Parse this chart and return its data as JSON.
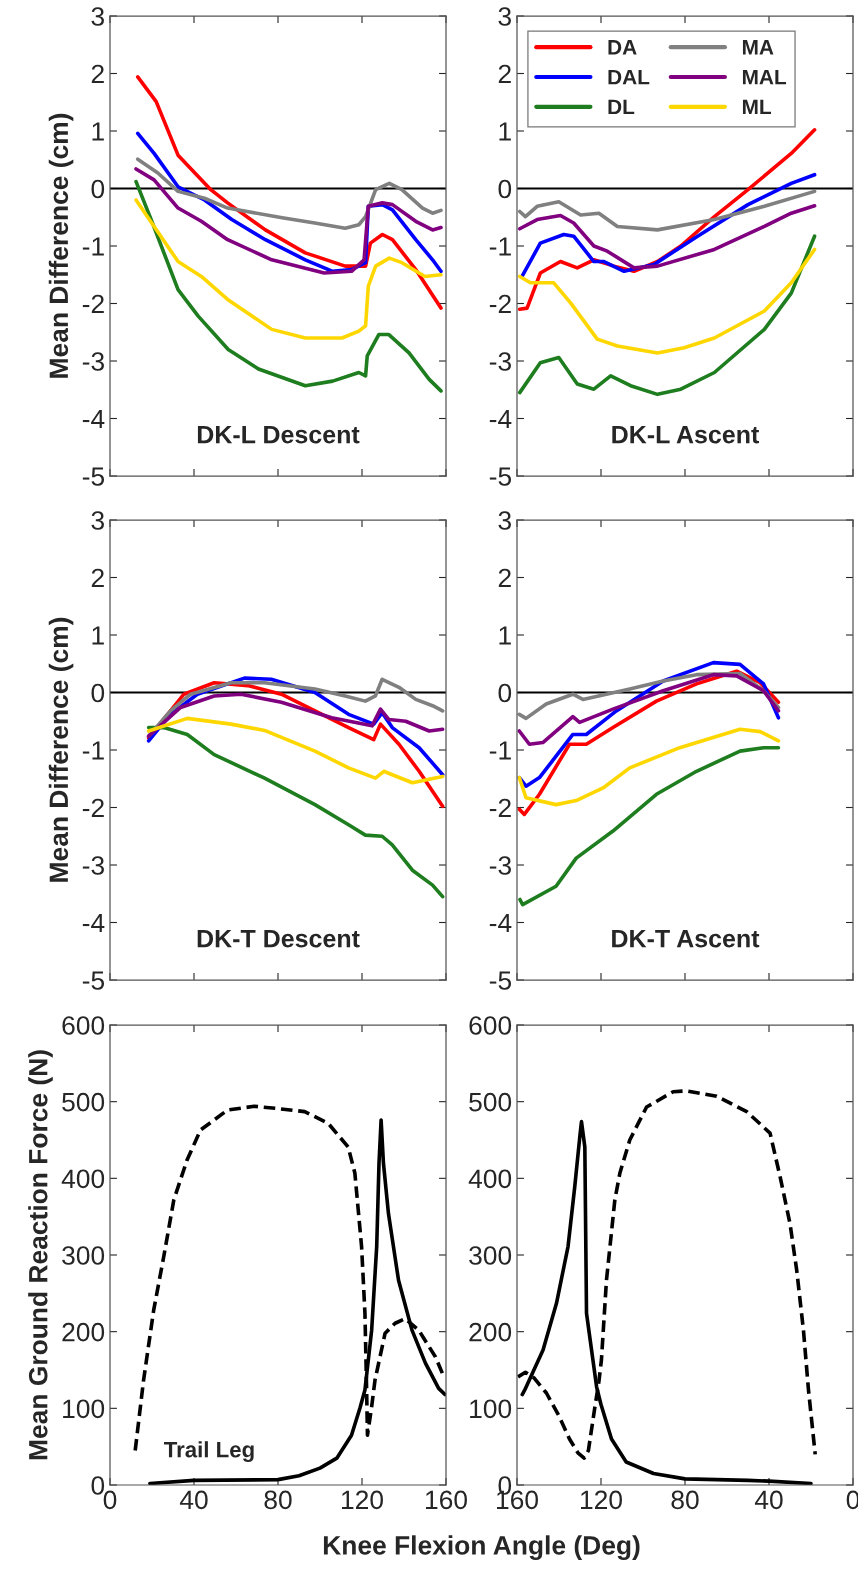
{
  "chart_data": [
    {
      "type": "line",
      "title": "DK-L Descent",
      "ylabel": "Mean Difference (cm)",
      "xlim": [
        0,
        160
      ],
      "ylim": [
        -5,
        3
      ],
      "xticks": [
        0,
        40,
        80,
        120,
        160
      ],
      "yticks": [
        -5,
        -4,
        -3,
        -2,
        -1,
        0,
        1,
        2,
        3
      ],
      "tick_labels": "y",
      "legend": false,
      "ref_lines": [
        {
          "axis": "y",
          "value": 0,
          "color": "#000000"
        }
      ],
      "series": [
        {
          "color": "#ff0000",
          "x": [
            13.2,
            22,
            32.4,
            48,
            56,
            74,
            93,
            112,
            120,
            121.7,
            124,
            129.7,
            134.5,
            145.6,
            157.6
          ],
          "values": [
            1.94,
            1.51,
            0.58,
            -0.02,
            -0.25,
            -0.72,
            -1.12,
            -1.35,
            -1.35,
            -1.35,
            -0.95,
            -0.8,
            -0.89,
            -1.41,
            -2.08
          ]
        },
        {
          "color": "#0000ff",
          "x": [
            13.2,
            21,
            32.4,
            45,
            58,
            74,
            93,
            106,
            115,
            121.7,
            123,
            129.7,
            134.5,
            145.6,
            153.6,
            157.6
          ],
          "values": [
            0.96,
            0.61,
            0.03,
            -0.2,
            -0.54,
            -0.89,
            -1.24,
            -1.44,
            -1.41,
            -1.29,
            -0.31,
            -0.28,
            -0.37,
            -0.89,
            -1.24,
            -1.44
          ]
        },
        {
          "color": "#1e7d1e",
          "x": [
            12.4,
            19.6,
            32.4,
            42,
            56.3,
            70.7,
            93,
            106,
            118.5,
            121.7,
            122.5,
            128,
            132.8,
            142.4,
            152,
            157.6
          ],
          "values": [
            0.12,
            -0.54,
            -1.76,
            -2.22,
            -2.8,
            -3.14,
            -3.43,
            -3.35,
            -3.2,
            -3.26,
            -2.91,
            -2.54,
            -2.54,
            -2.86,
            -3.32,
            -3.52
          ]
        },
        {
          "color": "#808080",
          "x": [
            13.2,
            22.8,
            32.4,
            45,
            56,
            82,
            97.5,
            112,
            118.5,
            121.7,
            126.5,
            133,
            139,
            148.8,
            153.6,
            157.6
          ],
          "values": [
            0.51,
            0.27,
            -0.05,
            -0.17,
            -0.34,
            -0.51,
            -0.6,
            -0.69,
            -0.63,
            -0.49,
            -0.02,
            0.09,
            -0.02,
            -0.34,
            -0.43,
            -0.38
          ]
        },
        {
          "color": "#800080",
          "x": [
            12.4,
            21,
            32.4,
            43.5,
            56,
            77,
            102,
            115,
            121,
            123,
            129.7,
            134.5,
            145.6,
            153.6,
            157.6
          ],
          "values": [
            0.34,
            0.15,
            -0.34,
            -0.57,
            -0.89,
            -1.24,
            -1.47,
            -1.44,
            -1.24,
            -0.31,
            -0.25,
            -0.28,
            -0.57,
            -0.72,
            -0.68
          ]
        },
        {
          "color": "#ffd700",
          "x": [
            12.4,
            21,
            32.4,
            43.5,
            56,
            77,
            93,
            110.5,
            118.5,
            121.7,
            123,
            126.5,
            133,
            139,
            150,
            157.6
          ],
          "values": [
            -0.2,
            -0.66,
            -1.27,
            -1.53,
            -1.93,
            -2.45,
            -2.6,
            -2.6,
            -2.48,
            -2.39,
            -1.7,
            -1.35,
            -1.21,
            -1.29,
            -1.53,
            -1.5
          ]
        }
      ]
    },
    {
      "type": "line",
      "title": "DK-L Ascent",
      "xlim": [
        160,
        0
      ],
      "ylim": [
        -5,
        3
      ],
      "xticks": [
        0,
        40,
        80,
        120,
        160
      ],
      "yticks": [
        -5,
        -4,
        -3,
        -2,
        -1,
        0,
        1,
        2,
        3
      ],
      "tick_labels": "y",
      "legend": "top",
      "ref_lines": [
        {
          "axis": "y",
          "value": 0,
          "color": "#000000"
        }
      ],
      "series": [
        {
          "name": "DA",
          "color": "#ff0000",
          "x": [
            158.7,
            155.2,
            148.9,
            139.3,
            131.3,
            123.4,
            113.8,
            104.3,
            93.1,
            82,
            66,
            50,
            29.4,
            18.3
          ],
          "values": [
            -2.1,
            -2.08,
            -1.47,
            -1.27,
            -1.38,
            -1.24,
            -1.35,
            -1.44,
            -1.27,
            -1.0,
            -0.49,
            -0.02,
            0.61,
            1.02
          ]
        },
        {
          "name": "DAL",
          "color": "#0000ff",
          "x": [
            157.6,
            148.9,
            137.7,
            133,
            123.4,
            118.6,
            109,
            94.7,
            74,
            50,
            29.4,
            18.3
          ],
          "values": [
            -1.53,
            -0.95,
            -0.8,
            -0.83,
            -1.27,
            -1.27,
            -1.44,
            -1.32,
            -0.83,
            -0.28,
            0.09,
            0.24
          ]
        },
        {
          "name": "DL",
          "color": "#1e7d1e",
          "x": [
            158.7,
            148.9,
            140.1,
            131.3,
            123.4,
            115.4,
            105.9,
            93.1,
            82,
            66,
            42.2,
            29.4,
            18.3
          ],
          "values": [
            -3.55,
            -3.03,
            -2.94,
            -3.4,
            -3.49,
            -3.26,
            -3.43,
            -3.58,
            -3.49,
            -3.2,
            -2.45,
            -1.82,
            -0.83
          ]
        },
        {
          "name": "MA",
          "color": "#808080",
          "x": [
            158.7,
            156,
            150.4,
            140.1,
            129.7,
            121,
            112.2,
            93.1,
            66,
            42.2,
            18.3
          ],
          "values": [
            -0.4,
            -0.49,
            -0.31,
            -0.23,
            -0.46,
            -0.43,
            -0.66,
            -0.72,
            -0.54,
            -0.31,
            -0.05
          ]
        },
        {
          "name": "MAL",
          "color": "#800080",
          "x": [
            158.7,
            150.4,
            139.3,
            133,
            123.4,
            117,
            104.3,
            93.1,
            66,
            42.2,
            29.4,
            18.3
          ],
          "values": [
            -0.7,
            -0.54,
            -0.47,
            -0.6,
            -1.0,
            -1.09,
            -1.38,
            -1.35,
            -1.06,
            -0.66,
            -0.43,
            -0.3
          ]
        },
        {
          "name": "ML",
          "color": "#ffd700",
          "x": [
            158.7,
            153.6,
            142.5,
            134.5,
            121.8,
            112.2,
            93.1,
            80.4,
            66,
            42.2,
            29.4,
            18.3
          ],
          "values": [
            -1.53,
            -1.64,
            -1.64,
            -1.99,
            -2.62,
            -2.74,
            -2.86,
            -2.77,
            -2.6,
            -2.13,
            -1.64,
            -1.06
          ]
        }
      ]
    },
    {
      "type": "line",
      "title": "DK-T Descent",
      "ylabel": "Mean Difference (cm)",
      "xlim": [
        0,
        160
      ],
      "ylim": [
        -5,
        3
      ],
      "xticks": [
        0,
        40,
        80,
        120,
        160
      ],
      "yticks": [
        -5,
        -4,
        -3,
        -2,
        -1,
        0,
        1,
        2,
        3
      ],
      "tick_labels": "y",
      "legend": false,
      "ref_lines": [
        {
          "axis": "y",
          "value": 0,
          "color": "#000000"
        }
      ],
      "series": [
        {
          "color": "#ff0000",
          "x": [
            18.4,
            28.8,
            35.2,
            49.6,
            65.6,
            81.6,
            97.6,
            113.6,
            125.6,
            128.8,
            137.6,
            147.2,
            158.4
          ],
          "values": [
            -0.79,
            -0.32,
            -0.03,
            0.17,
            0.12,
            -0.03,
            -0.32,
            -0.61,
            -0.82,
            -0.55,
            -0.9,
            -1.37,
            -1.98
          ]
        },
        {
          "color": "#0000ff",
          "x": [
            18.4,
            28.8,
            41.6,
            64,
            76.8,
            97.6,
            113.6,
            125.6,
            129.6,
            134.4,
            147.2,
            158.4
          ],
          "values": [
            -0.84,
            -0.38,
            -0.03,
            0.25,
            0.23,
            0.0,
            -0.38,
            -0.55,
            -0.35,
            -0.61,
            -0.96,
            -1.43
          ]
        },
        {
          "color": "#1e7d1e",
          "x": [
            18.4,
            25.6,
            36.8,
            49.6,
            73.6,
            97.6,
            113.6,
            121.6,
            129.6,
            134.4,
            144,
            153.6,
            158.4
          ],
          "values": [
            -0.61,
            -0.61,
            -0.73,
            -1.08,
            -1.49,
            -1.95,
            -2.3,
            -2.48,
            -2.5,
            -2.65,
            -3.09,
            -3.35,
            -3.55
          ]
        },
        {
          "color": "#808080",
          "x": [
            18.4,
            28.8,
            38.4,
            57.6,
            73.6,
            97.6,
            112,
            121.6,
            126.4,
            129.6,
            137.6,
            145.6,
            153.6,
            158.4
          ],
          "values": [
            -0.76,
            -0.32,
            -0.03,
            0.17,
            0.17,
            0.06,
            -0.06,
            -0.15,
            -0.06,
            0.23,
            0.09,
            -0.12,
            -0.23,
            -0.32
          ]
        },
        {
          "color": "#800080",
          "x": [
            18.4,
            33.6,
            49.6,
            62.4,
            81.6,
            105.6,
            124.8,
            128.8,
            132.8,
            140.8,
            152,
            158.4
          ],
          "values": [
            -0.76,
            -0.26,
            -0.06,
            -0.03,
            -0.17,
            -0.44,
            -0.58,
            -0.29,
            -0.47,
            -0.5,
            -0.67,
            -0.64
          ]
        },
        {
          "color": "#ffd700",
          "x": [
            18.4,
            36.8,
            57.6,
            73.6,
            97.6,
            113.6,
            126.4,
            130.4,
            134.4,
            144,
            152,
            158.4
          ],
          "values": [
            -0.67,
            -0.45,
            -0.55,
            -0.66,
            -1.02,
            -1.31,
            -1.49,
            -1.37,
            -1.43,
            -1.57,
            -1.51,
            -1.46
          ]
        }
      ]
    },
    {
      "type": "line",
      "title": "DK-T Ascent",
      "xlim": [
        160,
        0
      ],
      "ylim": [
        -5,
        3
      ],
      "xticks": [
        0,
        40,
        80,
        120,
        160
      ],
      "yticks": [
        -5,
        -4,
        -3,
        -2,
        -1,
        0,
        1,
        2,
        3
      ],
      "tick_labels": "y",
      "legend": false,
      "ref_lines": [
        {
          "axis": "y",
          "value": 0,
          "color": "#000000"
        }
      ],
      "series": [
        {
          "color": "#ff0000",
          "x": [
            158.9,
            156.5,
            149.3,
            135,
            127,
            114.3,
            93.6,
            74.5,
            55.4,
            44.2,
            35.5
          ],
          "values": [
            -2.03,
            -2.12,
            -1.77,
            -0.9,
            -0.9,
            -0.61,
            -0.15,
            0.15,
            0.37,
            0.17,
            -0.17
          ]
        },
        {
          "color": "#0000ff",
          "x": [
            158.9,
            155.7,
            149.3,
            133.4,
            127,
            112.7,
            90.4,
            66.5,
            53.8,
            42.6,
            35.5
          ],
          "values": [
            -1.48,
            -1.63,
            -1.48,
            -0.73,
            -0.73,
            -0.32,
            0.2,
            0.52,
            0.49,
            0.15,
            -0.44
          ]
        },
        {
          "color": "#1e7d1e",
          "x": [
            158.6,
            157.3,
            141.4,
            131.8,
            114.3,
            93.6,
            74.5,
            53.8,
            42.6,
            35.5
          ],
          "values": [
            -3.6,
            -3.69,
            -3.37,
            -2.88,
            -2.41,
            -1.77,
            -1.37,
            -1.02,
            -0.96,
            -0.96
          ]
        },
        {
          "color": "#808080",
          "x": [
            158.9,
            155.7,
            146.1,
            133.4,
            128.6,
            106.3,
            90.4,
            74.5,
            53.8,
            42.6,
            35.5
          ],
          "values": [
            -0.38,
            -0.45,
            -0.2,
            -0.03,
            -0.12,
            0.06,
            0.2,
            0.31,
            0.33,
            0.03,
            -0.26
          ]
        },
        {
          "color": "#800080",
          "x": [
            158.9,
            154.1,
            147.7,
            133.4,
            130.2,
            114.3,
            90.4,
            66.5,
            55.4,
            42.6,
            35.5
          ],
          "values": [
            -0.67,
            -0.9,
            -0.87,
            -0.42,
            -0.52,
            -0.29,
            0.03,
            0.31,
            0.29,
            0.03,
            -0.32
          ]
        },
        {
          "color": "#ffd700",
          "x": [
            158.9,
            155.7,
            141.4,
            131.8,
            119,
            106.3,
            82.5,
            53.8,
            44.2,
            35.5
          ],
          "values": [
            -1.48,
            -1.83,
            -1.95,
            -1.88,
            -1.66,
            -1.31,
            -0.96,
            -0.64,
            -0.68,
            -0.84
          ]
        }
      ]
    },
    {
      "type": "line",
      "ylabel": "Mean Ground Reaction Force (N)",
      "xlabel": "Knee Flexion Angle (Deg)",
      "xlim": [
        0,
        160
      ],
      "ylim": [
        0,
        600
      ],
      "xticks": [
        0,
        40,
        80,
        120,
        160
      ],
      "yticks": [
        0,
        100,
        200,
        300,
        400,
        500,
        600
      ],
      "legend": false,
      "annotations": [
        "Trail Leg"
      ],
      "series": [
        {
          "color": "#000000",
          "line_style": "solid",
          "x": [
            19,
            40,
            80,
            90,
            100,
            108,
            115,
            119,
            121.4,
            124.6,
            127,
            128.1,
            129.1,
            130.2,
            132.6,
            137.4,
            143.8,
            150.2,
            156.5,
            159.5
          ],
          "values": [
            2,
            6,
            7,
            12,
            22,
            35,
            65,
            100,
            124,
            202,
            311,
            420,
            476,
            420,
            354,
            267,
            202,
            159,
            126,
            118
          ]
        },
        {
          "color": "#000000",
          "line_style": "dashed",
          "x": [
            12,
            16,
            20.8,
            25.6,
            30.4,
            36.7,
            43.1,
            55.9,
            68.7,
            79.9,
            92.7,
            103.8,
            113.4,
            116.6,
            119.8,
            121.4,
            122.2,
            122.6,
            124.5,
            126.2,
            131,
            135.8,
            140.6,
            147,
            155,
            159
          ],
          "values": [
            45,
            137,
            228,
            298,
            372,
            424,
            463,
            489,
            494,
            491,
            487,
            472,
            441,
            407,
            311,
            224,
            124,
            65,
            100,
            137,
            198,
            211,
            217,
            202,
            167,
            141
          ]
        }
      ]
    },
    {
      "type": "line",
      "xlim": [
        160,
        0
      ],
      "ylim": [
        0,
        600
      ],
      "xticks": [
        0,
        40,
        80,
        120,
        160
      ],
      "yticks": [
        0,
        100,
        200,
        300,
        400,
        500,
        600
      ],
      "legend": false,
      "series": [
        {
          "color": "#000000",
          "line_style": "solid",
          "x": [
            157.5,
            156.3,
            147.6,
            141.2,
            135.7,
            132.5,
            130.1,
            129.3,
            127.7,
            126.9,
            122.1,
            120,
            115,
            108,
            95,
            80,
            50,
            40,
            20
          ],
          "values": [
            118,
            124,
            176,
            237,
            311,
            389,
            454,
            474,
            441,
            224,
            128,
            105,
            60,
            30,
            15,
            8,
            6,
            5,
            2
          ]
        },
        {
          "color": "#000000",
          "line_style": "dashed",
          "x": [
            159.5,
            156,
            152,
            146,
            140,
            135,
            131,
            128,
            126,
            123,
            121,
            119.8,
            117.4,
            113.4,
            111,
            106.3,
            98.3,
            85.6,
            79.2,
            64.9,
            50.6,
            39.5,
            34.7,
            30,
            26.8,
            23.6,
            21.2,
            18
          ],
          "values": [
            141,
            147,
            140,
            120,
            90,
            60,
            42,
            35,
            45,
            100,
            135,
            163,
            267,
            372,
            407,
            450,
            493,
            513,
            514,
            507,
            487,
            459,
            402,
            341,
            280,
            202,
            124,
            40
          ]
        }
      ]
    }
  ]
}
